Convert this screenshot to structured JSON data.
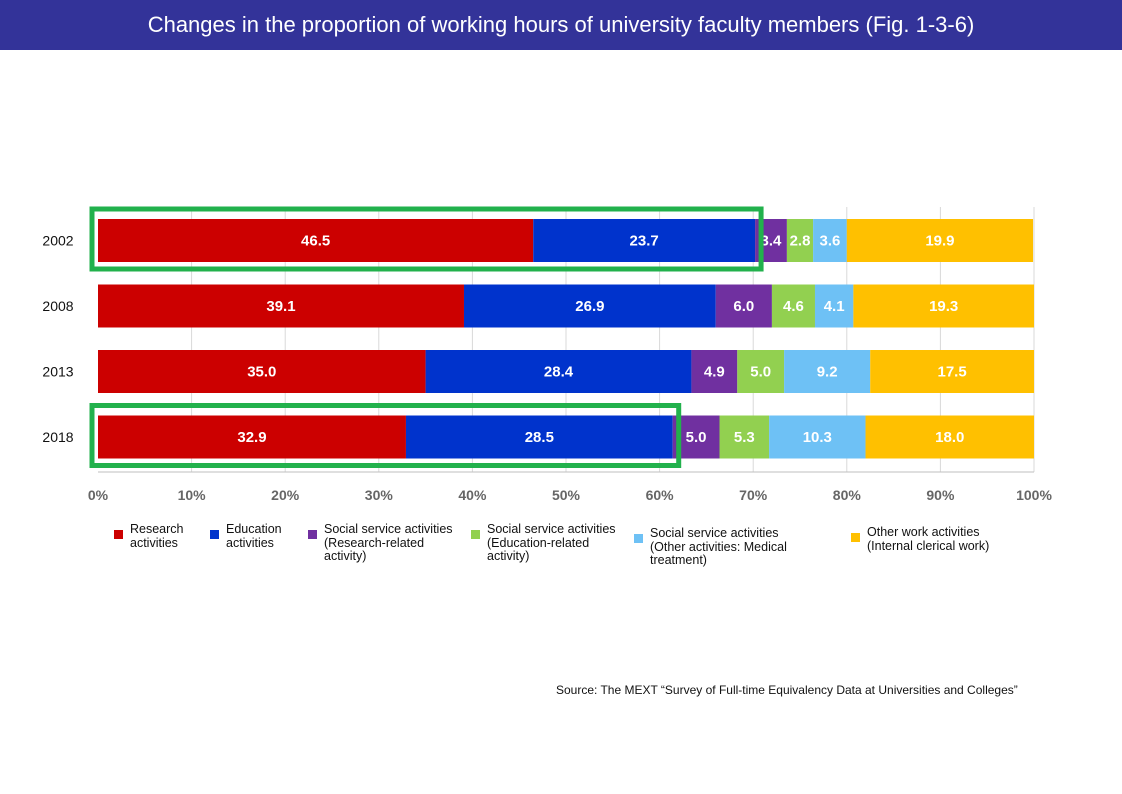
{
  "header": {
    "title": "Changes in the proportion of working hours of university faculty members (Fig. 1-3-6)"
  },
  "chart_data": {
    "type": "bar",
    "orientation": "horizontal",
    "stacked": true,
    "categories": [
      "2002",
      "2008",
      "2013",
      "2018"
    ],
    "series": [
      {
        "name": "Research activities",
        "color": "#cc0000",
        "values": [
          46.5,
          39.1,
          35.0,
          32.9
        ]
      },
      {
        "name": "Education activities",
        "color": "#0033cc",
        "values": [
          23.7,
          26.9,
          28.4,
          28.5
        ]
      },
      {
        "name": "Social service activities (Research-related activity)",
        "color": "#7030a0",
        "values": [
          3.4,
          6.0,
          4.9,
          5.0
        ]
      },
      {
        "name": "Social service activities (Education-related activity)",
        "color": "#92d050",
        "values": [
          2.8,
          4.6,
          5.0,
          5.3
        ]
      },
      {
        "name": "Social service activities (Other activities: Medical treatment)",
        "color": "#6ec1f5",
        "values": [
          3.6,
          4.1,
          9.2,
          10.3
        ]
      },
      {
        "name": "Other work activities (Internal clerical work)",
        "color": "#ffc000",
        "values": [
          19.9,
          19.3,
          17.5,
          18.0
        ]
      }
    ],
    "x_ticks": [
      "0%",
      "10%",
      "20%",
      "30%",
      "40%",
      "50%",
      "60%",
      "70%",
      "80%",
      "90%",
      "100%"
    ],
    "xlim": [
      0,
      100
    ],
    "grid": true,
    "highlight": {
      "color": "#22b14c",
      "categories": [
        "2002",
        "2018"
      ]
    }
  },
  "legend": [
    {
      "line1": "Research",
      "line2": "activities",
      "line3": "",
      "color": "#cc0000"
    },
    {
      "line1": "Education",
      "line2": "activities",
      "line3": "",
      "color": "#0033cc"
    },
    {
      "line1": "Social service activities",
      "line2": "(Research-related",
      "line3": "activity)",
      "color": "#7030a0"
    },
    {
      "line1": "Social service activities",
      "line2": "(Education-related",
      "line3": "activity)",
      "color": "#92d050"
    },
    {
      "line1": "Social service activities",
      "line2": "(Other activities: Medical",
      "line3": "treatment)",
      "color": "#6ec1f5"
    },
    {
      "line1": "Other work activities",
      "line2": "(Internal clerical work)",
      "line3": "",
      "color": "#ffc000"
    }
  ],
  "footer": {
    "source": "Source: The MEXT “Survey of Full-time Equivalency Data at Universities and Colleges”"
  }
}
